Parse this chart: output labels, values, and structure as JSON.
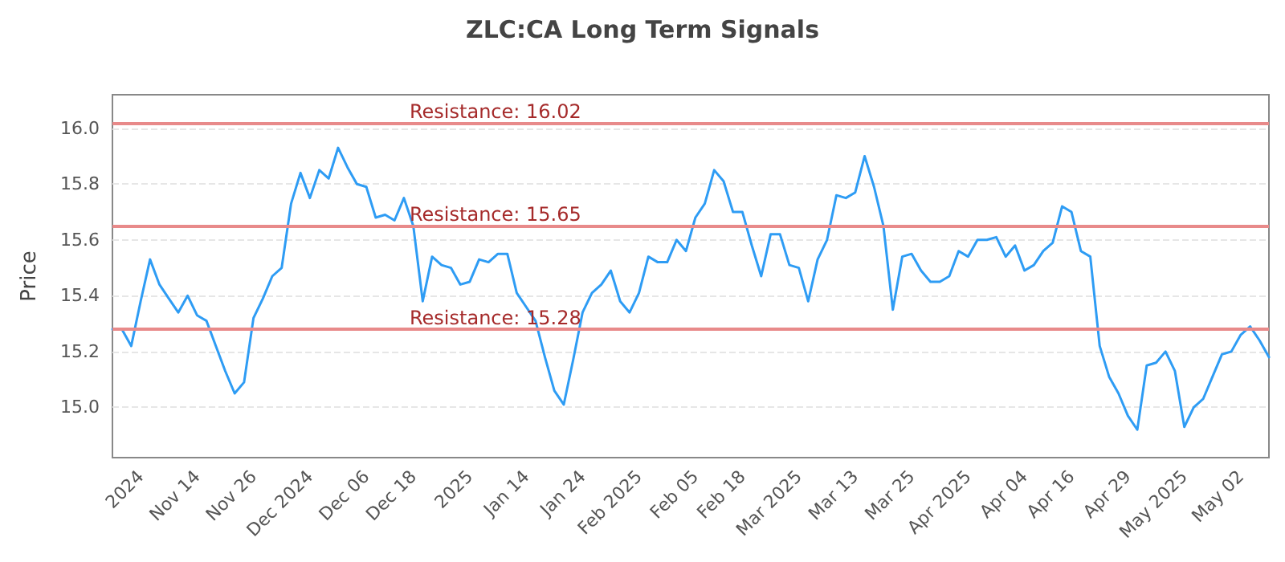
{
  "chart_data": {
    "type": "line",
    "title": "ZLC:CA Long Term Signals",
    "ylabel": "Price",
    "categories": [
      null,
      null,
      null,
      "2024",
      null,
      null,
      null,
      null,
      null,
      "Nov 14",
      null,
      null,
      null,
      null,
      null,
      "Nov 26",
      null,
      null,
      null,
      null,
      null,
      "Dec 2024",
      null,
      null,
      null,
      null,
      null,
      "Dec 06",
      null,
      null,
      null,
      null,
      "Dec 18",
      null,
      null,
      null,
      null,
      null,
      "2025",
      null,
      null,
      null,
      null,
      null,
      "Jan 14",
      null,
      null,
      null,
      null,
      null,
      "Jan 24",
      null,
      null,
      null,
      null,
      null,
      "Feb 2025",
      null,
      null,
      null,
      null,
      null,
      "Feb 05",
      null,
      null,
      null,
      null,
      "Feb 18",
      null,
      null,
      null,
      null,
      null,
      "Mar 2025",
      null,
      null,
      null,
      null,
      null,
      "Mar 13",
      null,
      null,
      null,
      null,
      null,
      "Mar 25",
      null,
      null,
      null,
      null,
      null,
      "Apr 2025",
      null,
      null,
      null,
      null,
      null,
      "Apr 04",
      null,
      null,
      null,
      null,
      "Apr 16",
      null,
      null,
      null,
      null,
      null,
      "Apr 29",
      null,
      null,
      null,
      null,
      null,
      "May 2025",
      null,
      null,
      null,
      null,
      null,
      "May 02",
      null,
      null,
      null
    ],
    "series": [
      {
        "color": "#2e9cf4",
        "values": [
          15.28,
          15.28,
          15.22,
          15.38,
          15.53,
          15.44,
          15.39,
          15.34,
          15.4,
          15.33,
          15.31,
          15.22,
          15.13,
          15.05,
          15.09,
          15.32,
          15.39,
          15.47,
          15.5,
          15.73,
          15.84,
          15.75,
          15.85,
          15.82,
          15.93,
          15.86,
          15.8,
          15.79,
          15.68,
          15.69,
          15.67,
          15.75,
          15.65,
          15.38,
          15.54,
          15.51,
          15.5,
          15.44,
          15.45,
          15.53,
          15.52,
          15.55,
          15.55,
          15.41,
          15.36,
          15.31,
          15.18,
          15.06,
          15.01,
          15.17,
          15.34,
          15.41,
          15.44,
          15.49,
          15.38,
          15.34,
          15.41,
          15.54,
          15.52,
          15.52,
          15.6,
          15.56,
          15.68,
          15.73,
          15.85,
          15.81,
          15.7,
          15.7,
          15.58,
          15.47,
          15.62,
          15.62,
          15.51,
          15.5,
          15.38,
          15.53,
          15.6,
          15.76,
          15.75,
          15.77,
          15.9,
          15.79,
          15.65,
          15.35,
          15.54,
          15.55,
          15.49,
          15.45,
          15.45,
          15.47,
          15.56,
          15.54,
          15.6,
          15.6,
          15.61,
          15.54,
          15.58,
          15.49,
          15.51,
          15.56,
          15.59,
          15.72,
          15.7,
          15.56,
          15.54,
          15.22,
          15.11,
          15.05,
          14.97,
          14.92,
          15.15,
          15.16,
          15.2,
          15.13,
          14.93,
          15.0,
          15.03,
          15.11,
          15.19,
          15.2,
          15.26,
          15.29,
          15.24,
          15.18
        ]
      }
    ],
    "ylim": [
      14.82,
      16.12
    ],
    "yticks": [
      {
        "value": 15,
        "label": "15.0"
      },
      15.2,
      15.4,
      15.6,
      15.8,
      {
        "value": 16,
        "label": "16.0"
      }
    ],
    "ref_lines": [
      {
        "axis": "y",
        "value": 16.02,
        "label": "Resistance: 16.02",
        "color": "#e88a8a"
      },
      {
        "axis": "y",
        "value": 15.65,
        "label": "Resistance: 15.65",
        "color": "#e88a8a"
      },
      {
        "axis": "y",
        "value": 15.28,
        "label": "Resistance: 15.28",
        "color": "#e88a8a"
      }
    ],
    "grid": "y",
    "marker": "none",
    "line_style": "solid"
  }
}
